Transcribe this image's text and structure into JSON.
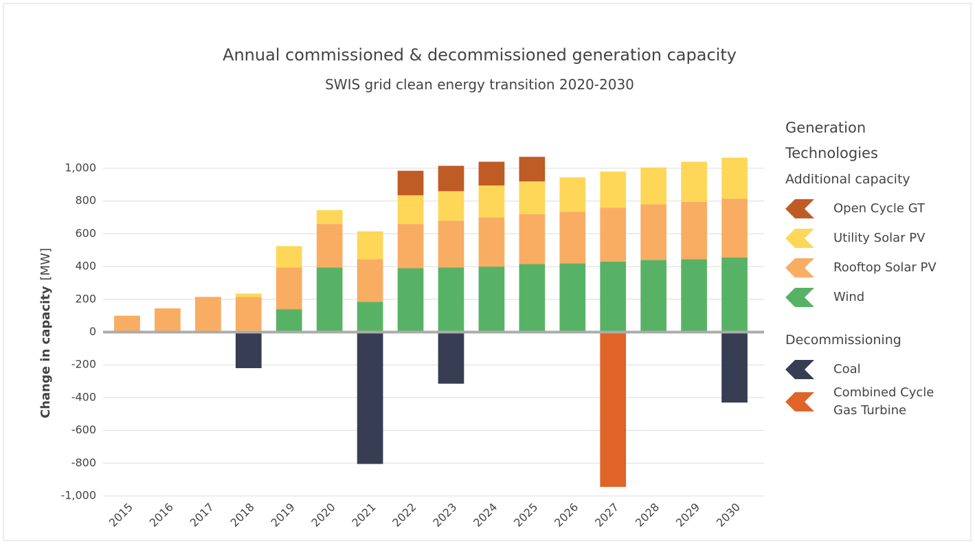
{
  "chart_data": {
    "type": "bar",
    "stacked": true,
    "title": "Annual commissioned & decommissioned generation capacity",
    "subtitle": "SWIS grid clean energy transition 2020-2030",
    "y_label": "Change in capacity",
    "y_unit": "[MW]",
    "legend_title": "Generation Technologies",
    "legend_groups": [
      "Additional capacity",
      "Decommissioning"
    ],
    "categories": [
      "2015",
      "2016",
      "2017",
      "2018",
      "2019",
      "2020",
      "2021",
      "2022",
      "2023",
      "2024",
      "2025",
      "2026",
      "2027",
      "2028",
      "2029",
      "2030"
    ],
    "series": [
      {
        "name": "Open Cycle GT",
        "color": "#bf5b25",
        "values": [
          null,
          null,
          null,
          null,
          null,
          null,
          null,
          150,
          155,
          145,
          150,
          null,
          null,
          null,
          null,
          null
        ]
      },
      {
        "name": "Utility Solar PV",
        "color": "#fed758",
        "values": [
          null,
          null,
          null,
          20,
          130,
          85,
          170,
          175,
          180,
          195,
          200,
          210,
          220,
          225,
          245,
          250
        ]
      },
      {
        "name": "Rooftop Solar PV",
        "color": "#f8ad63",
        "values": [
          100,
          145,
          215,
          215,
          255,
          265,
          260,
          270,
          285,
          300,
          305,
          315,
          330,
          340,
          350,
          360
        ]
      },
      {
        "name": "Wind",
        "color": "#58b266",
        "values": [
          null,
          null,
          null,
          null,
          140,
          395,
          185,
          390,
          395,
          400,
          415,
          420,
          430,
          440,
          445,
          455
        ]
      },
      {
        "name": "Coal",
        "color": "#373d52",
        "values": [
          null,
          null,
          null,
          -220,
          null,
          null,
          -805,
          null,
          -315,
          null,
          null,
          null,
          null,
          null,
          null,
          -430
        ]
      },
      {
        "name": "Combined Cycle Gas Turbine",
        "color": "#e06428",
        "values": [
          null,
          null,
          null,
          null,
          null,
          null,
          null,
          null,
          null,
          null,
          null,
          null,
          -945,
          null,
          null,
          null
        ]
      }
    ],
    "ylim": [
      -1000,
      1000
    ],
    "yticks": [
      {
        "value": -1000,
        "label": "-1,000"
      },
      -800,
      -600,
      -400,
      -200,
      0,
      200,
      400,
      600,
      800,
      {
        "value": 1000,
        "label": "1,000"
      }
    ],
    "grid": true
  }
}
